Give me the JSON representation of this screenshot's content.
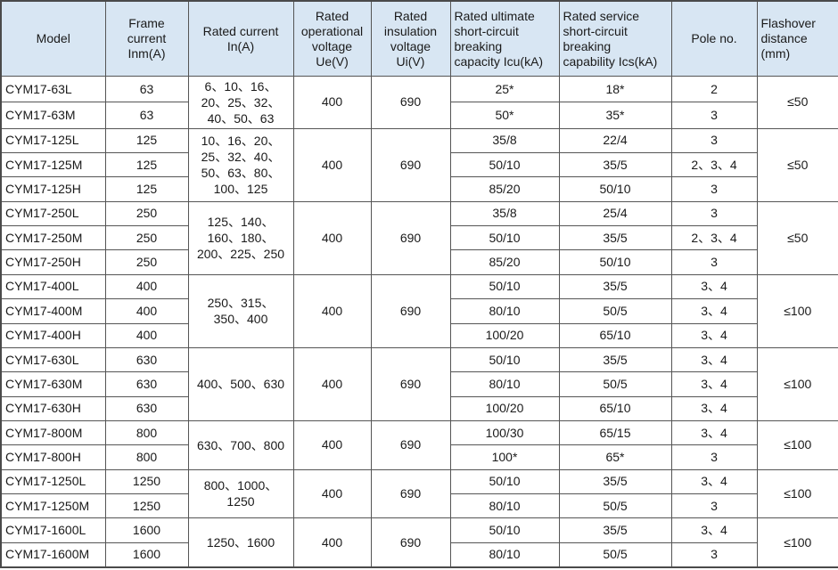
{
  "headers": {
    "model": "Model",
    "frame": "Frame\ncurrent\nInm(A)",
    "rated_current": "Rated current\nIn(A)",
    "ue": "Rated\noperational\nvoltage\nUe(V)",
    "ui": "Rated\ninsulation\nvoltage\nUi(V)",
    "icu": "Rated ultimate\nshort-circuit\nbreaking\ncapacity Icu(kA)",
    "ics": "Rated service\nshort-circuit\nbreaking\ncapability Ics(kA)",
    "pole": "Pole no.",
    "flashover": "Flashover\ndistance\n(mm)"
  },
  "groups": [
    {
      "rated_current": "6、10、16、20、25、32、40、50、63",
      "ue": "400",
      "ui": "690",
      "flashover": "≤50",
      "rows": [
        {
          "model": "CYM17-63L",
          "frame": "63",
          "icu": "25*",
          "ics": "18*",
          "pole": "2"
        },
        {
          "model": "CYM17-63M",
          "frame": "63",
          "icu": "50*",
          "ics": "35*",
          "pole": "3"
        }
      ]
    },
    {
      "rated_current": "10、16、20、25、32、40、50、63、80、100、125",
      "ue": "400",
      "ui": "690",
      "flashover": "≤50",
      "rows": [
        {
          "model": "CYM17-125L",
          "frame": "125",
          "icu": "35/8",
          "ics": "22/4",
          "pole": "3"
        },
        {
          "model": "CYM17-125M",
          "frame": "125",
          "icu": "50/10",
          "ics": "35/5",
          "pole": "2、3、4"
        },
        {
          "model": "CYM17-125H",
          "frame": "125",
          "icu": "85/20",
          "ics": "50/10",
          "pole": "3"
        }
      ]
    },
    {
      "rated_current": "125、140、160、180、200、225、250",
      "ue": "400",
      "ui": "690",
      "flashover": "≤50",
      "rows": [
        {
          "model": "CYM17-250L",
          "frame": "250",
          "icu": "35/8",
          "ics": "25/4",
          "pole": "3"
        },
        {
          "model": "CYM17-250M",
          "frame": "250",
          "icu": "50/10",
          "ics": "35/5",
          "pole": "2、3、4"
        },
        {
          "model": "CYM17-250H",
          "frame": "250",
          "icu": "85/20",
          "ics": "50/10",
          "pole": "3"
        }
      ]
    },
    {
      "rated_current": "250、315、350、400",
      "ue": "400",
      "ui": "690",
      "flashover": "≤100",
      "rows": [
        {
          "model": "CYM17-400L",
          "frame": "400",
          "icu": "50/10",
          "ics": "35/5",
          "pole": "3、4"
        },
        {
          "model": "CYM17-400M",
          "frame": "400",
          "icu": "80/10",
          "ics": "50/5",
          "pole": "3、4"
        },
        {
          "model": "CYM17-400H",
          "frame": "400",
          "icu": "100/20",
          "ics": "65/10",
          "pole": "3、4"
        }
      ]
    },
    {
      "rated_current": "400、500、630",
      "ue": "400",
      "ui": "690",
      "flashover": "≤100",
      "rows": [
        {
          "model": "CYM17-630L",
          "frame": "630",
          "icu": "50/10",
          "ics": "35/5",
          "pole": "3、4"
        },
        {
          "model": "CYM17-630M",
          "frame": "630",
          "icu": "80/10",
          "ics": "50/5",
          "pole": "3、4"
        },
        {
          "model": "CYM17-630H",
          "frame": "630",
          "icu": "100/20",
          "ics": "65/10",
          "pole": "3、4"
        }
      ]
    },
    {
      "rated_current": "630、700、800",
      "ue": "400",
      "ui": "690",
      "flashover": "≤100",
      "rows": [
        {
          "model": "CYM17-800M",
          "frame": "800",
          "icu": "100/30",
          "ics": "65/15",
          "pole": "3、4"
        },
        {
          "model": "CYM17-800H",
          "frame": "800",
          "icu": "100*",
          "ics": "65*",
          "pole": "3"
        }
      ]
    },
    {
      "rated_current": "800、1000、1250",
      "ue": "400",
      "ui": "690",
      "flashover": "≤100",
      "rows": [
        {
          "model": "CYM17-1250L",
          "frame": "1250",
          "icu": "50/10",
          "ics": "35/5",
          "pole": "3、4"
        },
        {
          "model": "CYM17-1250M",
          "frame": "1250",
          "icu": "80/10",
          "ics": "50/5",
          "pole": "3"
        }
      ]
    },
    {
      "rated_current": "1250、1600",
      "ue": "400",
      "ui": "690",
      "flashover": "≤100",
      "rows": [
        {
          "model": "CYM17-1600L",
          "frame": "1600",
          "icu": "50/10",
          "ics": "35/5",
          "pole": "3、4"
        },
        {
          "model": "CYM17-1600M",
          "frame": "1600",
          "icu": "80/10",
          "ics": "50/5",
          "pole": "3"
        }
      ]
    }
  ]
}
